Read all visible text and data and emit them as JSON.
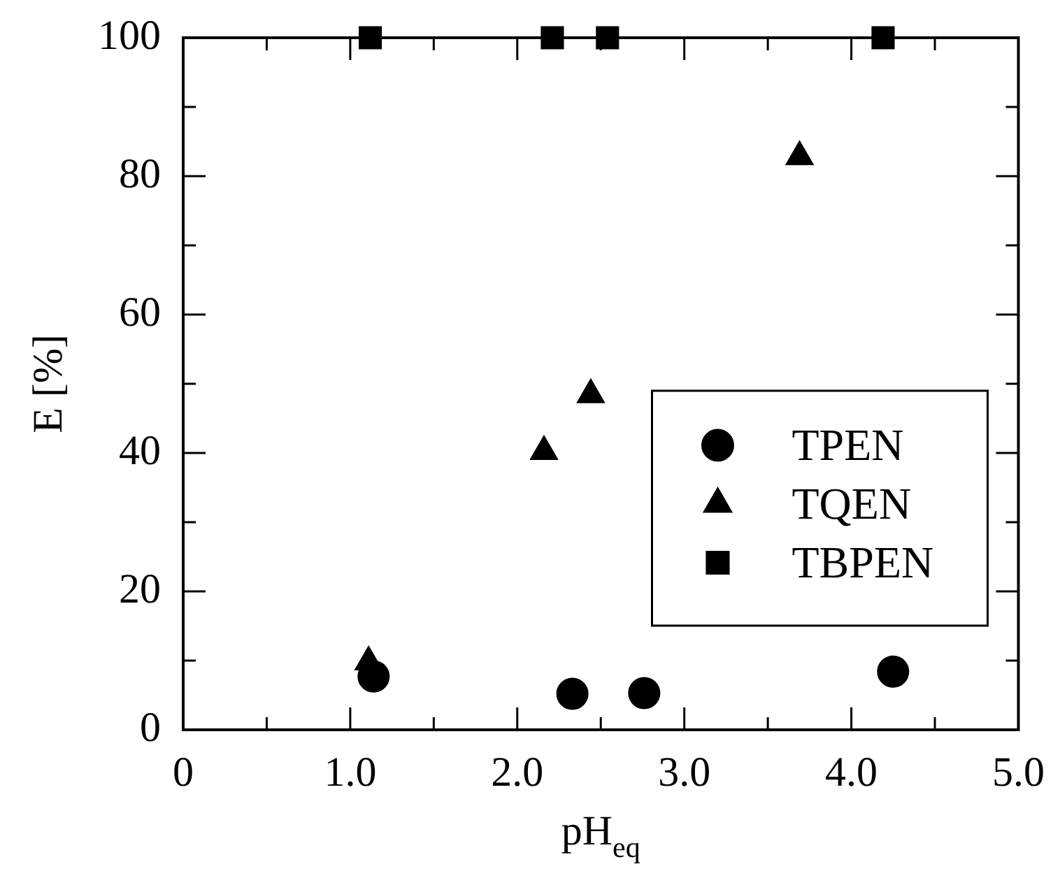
{
  "chart_data": {
    "type": "scatter",
    "xlabel": "pH$_{eq}$",
    "ylabel": "E [%]",
    "xlim": [
      0,
      5
    ],
    "ylim": [
      0,
      100
    ],
    "xticks": [
      0,
      {
        "value": 0.5,
        "label": null
      },
      {
        "value": 1,
        "label": "1.0"
      },
      {
        "value": 1.5,
        "label": null
      },
      {
        "value": 2,
        "label": "2.0"
      },
      {
        "value": 2.5,
        "label": null
      },
      {
        "value": 3,
        "label": "3.0"
      },
      {
        "value": 3.5,
        "label": null
      },
      {
        "value": 4,
        "label": "4.0"
      },
      {
        "value": 4.5,
        "label": null
      },
      {
        "value": 5,
        "label": "5.0"
      }
    ],
    "yticks": [
      0,
      {
        "value": 10,
        "label": null
      },
      20,
      {
        "value": 30,
        "label": null
      },
      40,
      {
        "value": 50,
        "label": null
      },
      60,
      {
        "value": 70,
        "label": null
      },
      80,
      {
        "value": 90,
        "label": null
      },
      100
    ],
    "grid": false,
    "legend": "right",
    "series": [
      {
        "name": "TPEN",
        "color": "#000000",
        "marker": "circle",
        "x": [
          1.14,
          2.33,
          2.76,
          4.25
        ],
        "values": [
          7.7,
          5.2,
          5.3,
          8.4
        ]
      },
      {
        "name": "TQEN",
        "color": "#000000",
        "marker": "triangle",
        "x": [
          1.11,
          2.16,
          2.44,
          3.69
        ],
        "values": [
          9.8,
          40.2,
          48.4,
          82.8
        ]
      },
      {
        "name": "TBPEN",
        "color": "#000000",
        "marker": "square",
        "x": [
          1.12,
          2.21,
          2.54,
          4.19
        ],
        "values": [
          100,
          100,
          100,
          100
        ]
      }
    ]
  }
}
